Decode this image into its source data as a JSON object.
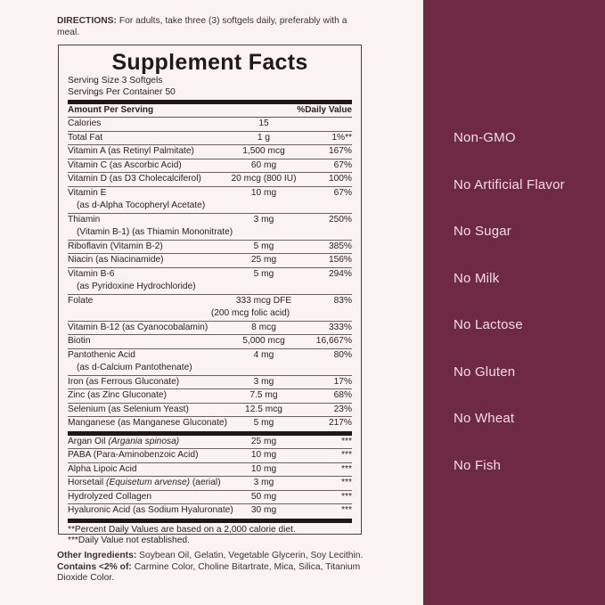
{
  "directions": {
    "label": "DIRECTIONS:",
    "text": "For adults, take three (3) softgels daily, preferably with a meal."
  },
  "facts": {
    "title": "Supplement Facts",
    "serving_size": "Serving Size 3 Softgels",
    "servings_per_container": "Servings Per Container 50",
    "amount_header": "Amount Per Serving",
    "dv_header": "%Daily Value",
    "nutrients": [
      {
        "name": "Calories",
        "sub": "",
        "amount": "15",
        "amount2": "",
        "dv": ""
      },
      {
        "name": "Total Fat",
        "sub": "",
        "amount": "1 g",
        "amount2": "",
        "dv": "1%**"
      },
      {
        "name": "Vitamin A (as Retinyl Palmitate)",
        "sub": "",
        "amount": "1,500 mcg",
        "amount2": "",
        "dv": "167%"
      },
      {
        "name": "Vitamin C (as Ascorbic Acid)",
        "sub": "",
        "amount": "60 mg",
        "amount2": "",
        "dv": "67%"
      },
      {
        "name": "Vitamin D (as D3 Cholecalciferol)",
        "sub": "",
        "amount": "20 mcg (800 IU)",
        "amount2": "",
        "dv": "100%"
      },
      {
        "name": "Vitamin E",
        "sub": "(as d-Alpha Tocopheryl Acetate)",
        "amount": "10 mg",
        "amount2": "",
        "dv": "67%"
      },
      {
        "name": "Thiamin",
        "sub": "(Vitamin B-1) (as Thiamin Mononitrate)",
        "amount": "3 mg",
        "amount2": "",
        "dv": "250%"
      },
      {
        "name": "Riboflavin (Vitamin B-2)",
        "sub": "",
        "amount": "5 mg",
        "amount2": "",
        "dv": "385%"
      },
      {
        "name": "Niacin (as Niacinamide)",
        "sub": "",
        "amount": "25 mg",
        "amount2": "",
        "dv": "156%"
      },
      {
        "name": "Vitamin B-6",
        "sub": "(as Pyridoxine Hydrochloride)",
        "amount": "5 mg",
        "amount2": "",
        "dv": "294%"
      },
      {
        "name": "Folate",
        "sub": "",
        "amount": "333 mcg DFE",
        "amount2": "(200 mcg folic acid)",
        "dv": "83%"
      },
      {
        "name": "Vitamin B-12 (as Cyanocobalamin)",
        "sub": "",
        "amount": "8 mcg",
        "amount2": "",
        "dv": "333%"
      },
      {
        "name": "Biotin",
        "sub": "",
        "amount": "5,000 mcg",
        "amount2": "",
        "dv": "16,667%"
      },
      {
        "name": "Pantothenic Acid",
        "sub": "(as d-Calcium Pantothenate)",
        "amount": "4 mg",
        "amount2": "",
        "dv": "80%"
      },
      {
        "name": "Iron (as Ferrous Gluconate)",
        "sub": "",
        "amount": "3 mg",
        "amount2": "",
        "dv": "17%"
      },
      {
        "name": "Zinc (as Zinc Gluconate)",
        "sub": "",
        "amount": "7.5 mg",
        "amount2": "",
        "dv": "68%"
      },
      {
        "name": "Selenium (as Selenium Yeast)",
        "sub": "",
        "amount": "12.5 mcg",
        "amount2": "",
        "dv": "23%"
      },
      {
        "name": "Manganese (as Manganese Gluconate)",
        "sub": "",
        "amount": "5 mg",
        "amount2": "",
        "dv": "217%"
      }
    ],
    "others": [
      {
        "name": "Argan Oil",
        "latin": "(Argania spinosa)",
        "extra": "",
        "amount": "25 mg",
        "dv": "***"
      },
      {
        "name": "PABA (Para-Aminobenzoic Acid)",
        "latin": "",
        "extra": "",
        "amount": "10 mg",
        "dv": "***"
      },
      {
        "name": "Alpha Lipoic Acid",
        "latin": "",
        "extra": "",
        "amount": "10 mg",
        "dv": "***"
      },
      {
        "name": "Horsetail",
        "latin": "(Equisetum arvense)",
        "extra": "(aerial)",
        "amount": "3 mg",
        "dv": "***"
      },
      {
        "name": "Hydrolyzed Collagen",
        "latin": "",
        "extra": "",
        "amount": "50 mg",
        "dv": "***"
      },
      {
        "name": "Hyaluronic Acid (as Sodium Hyaluronate)",
        "latin": "",
        "extra": "",
        "amount": "30 mg",
        "dv": "***"
      }
    ],
    "footnote1": "**Percent Daily Values are based on a 2,000 calorie diet.",
    "footnote2": "***Daily Value not established."
  },
  "other_ingredients": {
    "label": "Other Ingredients:",
    "text": "Soybean Oil, Gelatin, Vegetable Glycerin, Soy Lecithin.",
    "contains_label": "Contains <2% of:",
    "contains_text": "Carmine Color, Choline Bitartrate, Mica, Silica, Titanium Dioxide Color."
  },
  "claims": [
    "Non-GMO",
    "No Artificial Flavor",
    "No Sugar",
    "No Milk",
    "No Lactose",
    "No Gluten",
    "No Wheat",
    "No Fish"
  ],
  "colors": {
    "panel": "#6e2a43",
    "background": "#faf4f1",
    "claim_text": "#f6dbe6"
  }
}
